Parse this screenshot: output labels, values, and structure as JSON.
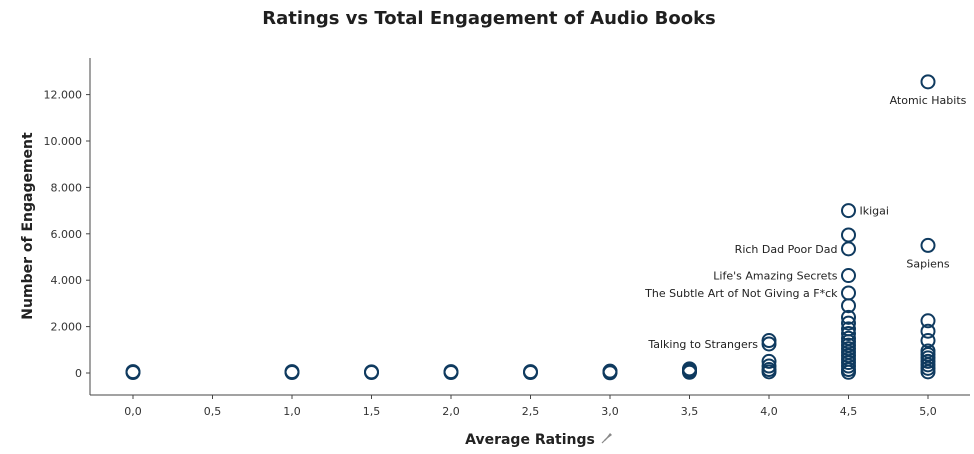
{
  "chart_data": {
    "type": "scatter",
    "title": "Ratings vs Total Engagement of Audio Books",
    "xlabel": "Average Ratings",
    "ylabel": "Number of Engagement",
    "xlim": [
      -0.25,
      5.25
    ],
    "ylim": [
      -900,
      13500
    ],
    "x_ticks": [
      "0,0",
      "0,5",
      "1,0",
      "1,5",
      "2,0",
      "2,5",
      "3,0",
      "3,5",
      "4,0",
      "4,5",
      "5,0"
    ],
    "y_ticks": [
      "0",
      "2.000",
      "4.000",
      "6.000",
      "8.000",
      "10.000",
      "12.000"
    ],
    "marker_color": "#0f3a5f",
    "points": [
      {
        "x": 0.0,
        "y": 20
      },
      {
        "x": 0.0,
        "y": 60
      },
      {
        "x": 1.0,
        "y": 20
      },
      {
        "x": 1.0,
        "y": 60
      },
      {
        "x": 1.5,
        "y": 20
      },
      {
        "x": 1.5,
        "y": 50
      },
      {
        "x": 2.0,
        "y": 20
      },
      {
        "x": 2.0,
        "y": 60
      },
      {
        "x": 2.5,
        "y": 20
      },
      {
        "x": 2.5,
        "y": 60
      },
      {
        "x": 3.0,
        "y": 10
      },
      {
        "x": 3.0,
        "y": 60
      },
      {
        "x": 3.0,
        "y": 80
      },
      {
        "x": 3.5,
        "y": 30
      },
      {
        "x": 3.5,
        "y": 80
      },
      {
        "x": 3.5,
        "y": 130
      },
      {
        "x": 3.5,
        "y": 180
      },
      {
        "x": 4.0,
        "y": 50
      },
      {
        "x": 4.0,
        "y": 150
      },
      {
        "x": 4.0,
        "y": 300
      },
      {
        "x": 4.0,
        "y": 500
      },
      {
        "x": 4.0,
        "y": 1250
      },
      {
        "x": 4.0,
        "y": 1400
      },
      {
        "x": 4.5,
        "y": 30
      },
      {
        "x": 4.5,
        "y": 150
      },
      {
        "x": 4.5,
        "y": 300
      },
      {
        "x": 4.5,
        "y": 450
      },
      {
        "x": 4.5,
        "y": 600
      },
      {
        "x": 4.5,
        "y": 750
      },
      {
        "x": 4.5,
        "y": 900
      },
      {
        "x": 4.5,
        "y": 1050
      },
      {
        "x": 4.5,
        "y": 1200
      },
      {
        "x": 4.5,
        "y": 1350
      },
      {
        "x": 4.5,
        "y": 1500
      },
      {
        "x": 4.5,
        "y": 1700
      },
      {
        "x": 4.5,
        "y": 1900
      },
      {
        "x": 4.5,
        "y": 2150
      },
      {
        "x": 4.5,
        "y": 2400
      },
      {
        "x": 4.5,
        "y": 2900
      },
      {
        "x": 4.5,
        "y": 3450
      },
      {
        "x": 4.5,
        "y": 4200
      },
      {
        "x": 4.5,
        "y": 5350
      },
      {
        "x": 4.5,
        "y": 5950
      },
      {
        "x": 4.5,
        "y": 7000
      },
      {
        "x": 5.0,
        "y": 50
      },
      {
        "x": 5.0,
        "y": 200
      },
      {
        "x": 5.0,
        "y": 350
      },
      {
        "x": 5.0,
        "y": 500
      },
      {
        "x": 5.0,
        "y": 650
      },
      {
        "x": 5.0,
        "y": 800
      },
      {
        "x": 5.0,
        "y": 950
      },
      {
        "x": 5.0,
        "y": 1400
      },
      {
        "x": 5.0,
        "y": 1800
      },
      {
        "x": 5.0,
        "y": 2250
      },
      {
        "x": 5.0,
        "y": 5500
      },
      {
        "x": 5.0,
        "y": 12550
      }
    ],
    "annotations": [
      {
        "text": "Atomic Habits",
        "x": 5.0,
        "y": 12550,
        "pos": "below"
      },
      {
        "text": "Ikigai",
        "x": 4.5,
        "y": 7000,
        "pos": "right"
      },
      {
        "text": "Rich Dad Poor Dad",
        "x": 4.5,
        "y": 5350,
        "pos": "left"
      },
      {
        "text": "Sapiens",
        "x": 5.0,
        "y": 5500,
        "pos": "below"
      },
      {
        "text": "Life's Amazing Secrets",
        "x": 4.5,
        "y": 4200,
        "pos": "left"
      },
      {
        "text": "The Subtle Art of Not Giving a F*ck",
        "x": 4.5,
        "y": 3450,
        "pos": "left"
      },
      {
        "text": "Talking to Strangers",
        "x": 4.0,
        "y": 1250,
        "pos": "left"
      }
    ]
  }
}
